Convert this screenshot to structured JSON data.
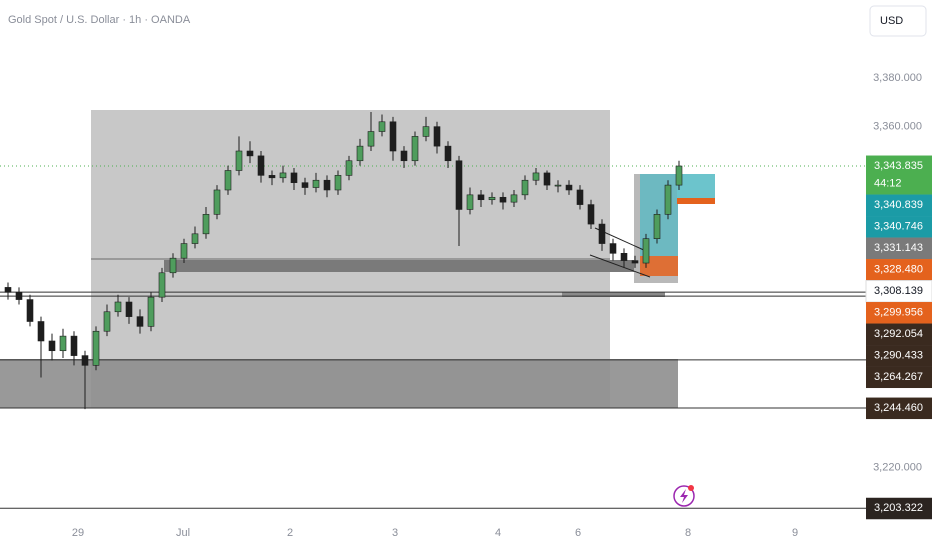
{
  "header": {
    "symbol": "Gold Spot / U.S. Dollar · 1h · OANDA",
    "currency": "USD"
  },
  "chart_data": {
    "type": "candlestick",
    "ohlc": [
      [
        3294,
        3296,
        3289,
        3292
      ],
      [
        3292,
        3294,
        3287,
        3289
      ],
      [
        3289,
        3291,
        3278,
        3280
      ],
      [
        3280,
        3282,
        3257,
        3272
      ],
      [
        3272,
        3275,
        3264,
        3268
      ],
      [
        3268,
        3277,
        3265,
        3274
      ],
      [
        3274,
        3276,
        3262,
        3266
      ],
      [
        3266,
        3268,
        3244,
        3262
      ],
      [
        3262,
        3278,
        3260,
        3276
      ],
      [
        3276,
        3287,
        3274,
        3284
      ],
      [
        3284,
        3291,
        3282,
        3288
      ],
      [
        3288,
        3290,
        3279,
        3282
      ],
      [
        3282,
        3285,
        3275,
        3278
      ],
      [
        3278,
        3292,
        3276,
        3290
      ],
      [
        3290,
        3302,
        3288,
        3300
      ],
      [
        3300,
        3308,
        3298,
        3306
      ],
      [
        3306,
        3314,
        3304,
        3312
      ],
      [
        3312,
        3319,
        3310,
        3316
      ],
      [
        3316,
        3327,
        3314,
        3324
      ],
      [
        3324,
        3336,
        3322,
        3334
      ],
      [
        3334,
        3344,
        3332,
        3342
      ],
      [
        3342,
        3356,
        3340,
        3350
      ],
      [
        3350,
        3354,
        3345,
        3348
      ],
      [
        3348,
        3350,
        3337,
        3340
      ],
      [
        3340,
        3342,
        3336,
        3339
      ],
      [
        3339,
        3344,
        3337,
        3341
      ],
      [
        3341,
        3343,
        3334,
        3337
      ],
      [
        3337,
        3339,
        3332,
        3335
      ],
      [
        3335,
        3341,
        3333,
        3338
      ],
      [
        3338,
        3340,
        3331,
        3334
      ],
      [
        3334,
        3342,
        3332,
        3340
      ],
      [
        3340,
        3348,
        3338,
        3346
      ],
      [
        3346,
        3355,
        3344,
        3352
      ],
      [
        3352,
        3366,
        3350,
        3358
      ],
      [
        3358,
        3365,
        3356,
        3362
      ],
      [
        3362,
        3364,
        3346,
        3350
      ],
      [
        3350,
        3352,
        3343,
        3346
      ],
      [
        3346,
        3358,
        3344,
        3356
      ],
      [
        3356,
        3364,
        3354,
        3360
      ],
      [
        3360,
        3362,
        3349,
        3352
      ],
      [
        3352,
        3354,
        3343,
        3346
      ],
      [
        3346,
        3348,
        3311,
        3326
      ],
      [
        3326,
        3335,
        3324,
        3332
      ],
      [
        3332,
        3334,
        3327,
        3330
      ],
      [
        3330,
        3333,
        3328,
        3331
      ],
      [
        3331,
        3333,
        3326,
        3329
      ],
      [
        3329,
        3334,
        3327,
        3332
      ],
      [
        3332,
        3340,
        3330,
        3338
      ],
      [
        3338,
        3343,
        3336,
        3341
      ],
      [
        3341,
        3342,
        3334,
        3336
      ],
      [
        3336,
        3338,
        3333,
        3336
      ],
      [
        3336,
        3338,
        3332,
        3334
      ],
      [
        3334,
        3336,
        3326,
        3328
      ],
      [
        3328,
        3330,
        3318,
        3320
      ],
      [
        3320,
        3322,
        3309,
        3312
      ],
      [
        3312,
        3314,
        3305,
        3308
      ],
      [
        3308,
        3310,
        3302,
        3305
      ],
      [
        3305,
        3307,
        3302,
        3304
      ],
      [
        3304,
        3316,
        3302,
        3314
      ],
      [
        3314,
        3326,
        3312,
        3324
      ],
      [
        3324,
        3338,
        3322,
        3336
      ],
      [
        3336,
        3346,
        3334,
        3343.835
      ]
    ],
    "colors": {
      "up": "#4f9d5d",
      "down": "#1e1e1e"
    },
    "ylim": [
      3198.5,
      3412
    ],
    "yticks": [
      {
        "value": 3220,
        "label": "3,220.000"
      },
      {
        "value": 3360,
        "label": "3,360.000"
      },
      {
        "value": 3380,
        "label": "3,380.000"
      }
    ],
    "x_labels": [
      "29",
      "Jul",
      "2",
      "3",
      "4",
      "6",
      "8",
      "9"
    ],
    "countdown": "44:12",
    "price_tags": [
      {
        "value": 3343.835,
        "label": "3,343.835",
        "color": "#4caf50"
      },
      {
        "value": 3340.839,
        "label": "3,340.839",
        "color": "#1b9ba6"
      },
      {
        "value": 3340.746,
        "label": "3,340.746",
        "color": "#1b9ba6"
      },
      {
        "value": 3331.143,
        "label": "3,331.143",
        "color": "#7a7a7a"
      },
      {
        "value": 3328.48,
        "label": "3,328.480",
        "color": "#e4621d"
      },
      {
        "value": 3308.139,
        "label": "3,308.139",
        "color": "#ffffff"
      },
      {
        "value": 3299.956,
        "label": "3,299.956",
        "color": "#e4621d"
      },
      {
        "value": 3292.054,
        "label": "3,292.054",
        "color": "#3a2a1f",
        "line": true
      },
      {
        "value": 3290.433,
        "label": "3,290.433",
        "color": "#3a2a1f",
        "line": true
      },
      {
        "value": 3264.267,
        "label": "3,264.267",
        "color": "#3a2a1f",
        "line": true
      },
      {
        "value": 3244.46,
        "label": "3,244.460",
        "color": "#3a2a1f",
        "line": true
      },
      {
        "value": 3203.322,
        "label": "3,203.322",
        "color": "#2b2420",
        "line": true
      }
    ]
  }
}
